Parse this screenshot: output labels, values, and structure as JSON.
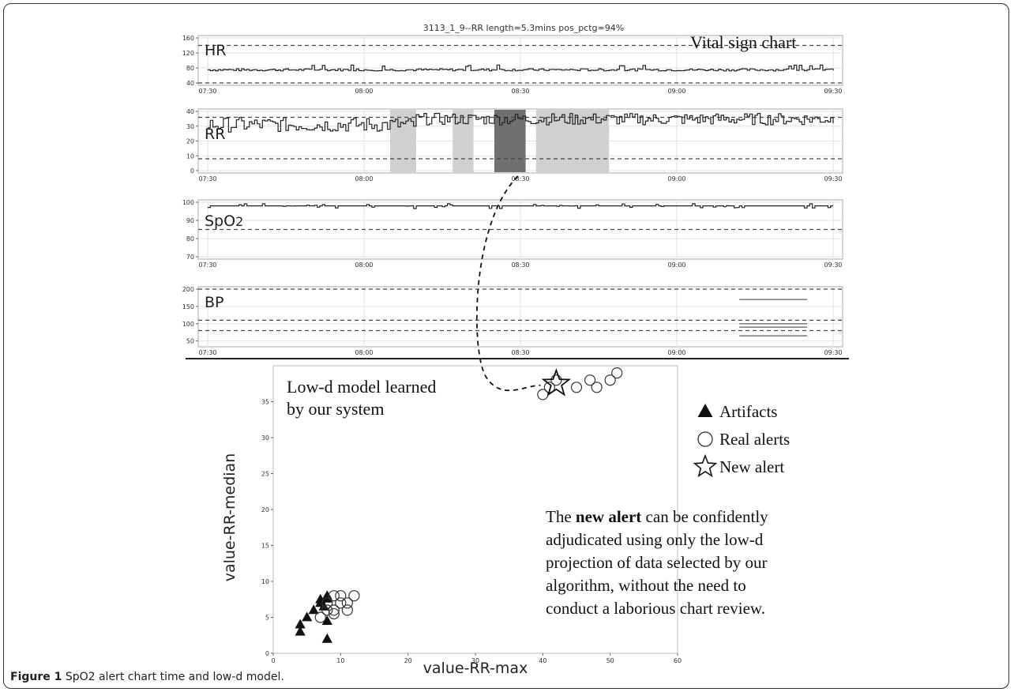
{
  "figure_title": "3113_1_9--RR length=5.3mins  pos_pctg=94%",
  "vital_sign_label": "Vital sign chart",
  "caption": {
    "label": "Figure 1",
    "text": "SpO2 alert chart time and low-d model."
  },
  "colors": {
    "trace": "#222222",
    "grid": "#e2e2e2",
    "threshold": "#444444",
    "shade_light": "#d0d0d0",
    "shade_dark": "#707070"
  },
  "chart_data": [
    {
      "type": "line",
      "name": "HR",
      "x_ticks": [
        "07:30",
        "08:00",
        "08:30",
        "09:00",
        "09:30"
      ],
      "ylim": [
        40,
        160
      ],
      "y_ticks": [
        40,
        80,
        120,
        160
      ],
      "thresholds": [
        40,
        140
      ],
      "series": [
        {
          "x_start": "07:30",
          "x_end": "09:30",
          "approx_value": 75,
          "range": [
            68,
            88
          ]
        }
      ]
    },
    {
      "type": "line",
      "name": "RR",
      "x_ticks": [
        "07:30",
        "08:00",
        "08:30",
        "09:00",
        "09:30"
      ],
      "ylim": [
        0,
        40
      ],
      "y_ticks": [
        0,
        10,
        20,
        30,
        40
      ],
      "thresholds": [
        8,
        36
      ],
      "highlighted_windows": [
        {
          "start": "08:05",
          "end": "08:10",
          "shade": "light"
        },
        {
          "start": "08:17",
          "end": "08:21",
          "shade": "light"
        },
        {
          "start": "08:25",
          "end": "08:31",
          "shade": "dark"
        },
        {
          "start": "08:33",
          "end": "08:47",
          "shade": "light"
        }
      ],
      "series": [
        {
          "x_start": "07:30",
          "x_end": "09:30",
          "approx_range": [
            25,
            40
          ]
        }
      ]
    },
    {
      "type": "line",
      "name": "SpO2",
      "x_ticks": [
        "07:30",
        "08:00",
        "08:30",
        "09:00",
        "09:30"
      ],
      "ylim": [
        70,
        100
      ],
      "y_ticks": [
        70,
        80,
        90,
        100
      ],
      "thresholds": [
        85
      ],
      "series": [
        {
          "x_start": "07:30",
          "x_end": "09:30",
          "approx_value": 98,
          "range": [
            96,
            100
          ]
        }
      ]
    },
    {
      "type": "line",
      "name": "BP",
      "x_ticks": [
        "07:30",
        "08:00",
        "08:30",
        "09:00",
        "09:30"
      ],
      "ylim": [
        40,
        200
      ],
      "y_ticks": [
        50,
        100,
        150,
        200
      ],
      "thresholds": [
        80,
        110,
        200
      ],
      "series": [
        {
          "x_start": "09:12",
          "x_end": "09:25",
          "values": [
            170,
            100,
            90,
            65
          ]
        }
      ]
    },
    {
      "type": "scatter",
      "title": "Low-d model learned by our system",
      "xlabel": "value-RR-max",
      "ylabel": "value-RR-median",
      "xlim": [
        0,
        60
      ],
      "ylim": [
        0,
        40
      ],
      "x_ticks": [
        0,
        10,
        20,
        30,
        40,
        50,
        60
      ],
      "y_ticks": [
        0,
        5,
        10,
        15,
        20,
        25,
        30,
        35
      ],
      "legend": {
        "position": "right",
        "entries": [
          "Artifacts",
          "Real alerts",
          "New alert"
        ]
      },
      "series": [
        {
          "name": "Artifacts",
          "marker": "triangle",
          "points": [
            [
              4,
              3
            ],
            [
              4,
              4
            ],
            [
              5,
              5
            ],
            [
              6,
              6
            ],
            [
              7,
              7
            ],
            [
              7,
              7.5
            ],
            [
              8,
              8
            ],
            [
              8,
              7.6
            ],
            [
              8,
              4.5
            ],
            [
              8,
              2
            ],
            [
              7.5,
              6.5
            ]
          ]
        },
        {
          "name": "Real alerts",
          "marker": "circle",
          "points": [
            [
              7,
              5
            ],
            [
              8,
              6
            ],
            [
              8,
              7
            ],
            [
              9,
              6
            ],
            [
              9,
              8
            ],
            [
              10,
              7
            ],
            [
              10,
              8
            ],
            [
              11,
              6
            ],
            [
              11,
              7
            ],
            [
              12,
              8
            ],
            [
              9,
              5.5
            ],
            [
              40,
              36
            ],
            [
              41,
              37
            ],
            [
              42,
              38
            ],
            [
              45,
              37
            ],
            [
              47,
              38
            ],
            [
              48,
              37
            ],
            [
              50,
              38
            ],
            [
              51,
              39
            ]
          ]
        },
        {
          "name": "New alert",
          "marker": "star",
          "points": [
            [
              42,
              37.5
            ]
          ]
        }
      ],
      "annotation": "The new alert can be confidently adjudicated using only the low-d projection of data selected by our algorithm, without the need to conduct a laborious chart review.",
      "annotation_bold": "new alert"
    }
  ]
}
